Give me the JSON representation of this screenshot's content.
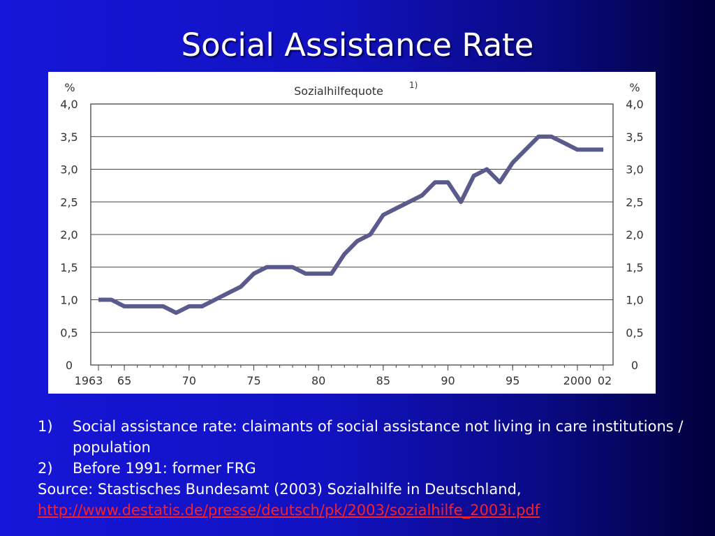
{
  "slide": {
    "title": "Social Assistance Rate"
  },
  "chart_data": {
    "type": "line",
    "title": "Sozialhilfequote",
    "title_superscript": "1)",
    "ylabel_left": "%",
    "ylabel_right": "%",
    "ylim": [
      0,
      4
    ],
    "xlim": [
      1963,
      2002
    ],
    "grid": true,
    "line_color": "#5a5a8c",
    "y_ticks": [
      {
        "value": 0,
        "label": "0"
      },
      {
        "value": 0.5,
        "label": "0,5"
      },
      {
        "value": 1.0,
        "label": "1,0"
      },
      {
        "value": 1.5,
        "label": "1,5"
      },
      {
        "value": 2.0,
        "label": "2,0"
      },
      {
        "value": 2.5,
        "label": "2,5"
      },
      {
        "value": 3.0,
        "label": "3,0"
      },
      {
        "value": 3.5,
        "label": "3,5"
      },
      {
        "value": 4.0,
        "label": "4,0"
      }
    ],
    "x_ticks": [
      {
        "value": 1963,
        "label": "1963"
      },
      {
        "value": 1965,
        "label": "65"
      },
      {
        "value": 1970,
        "label": "70"
      },
      {
        "value": 1975,
        "label": "75"
      },
      {
        "value": 1980,
        "label": "80"
      },
      {
        "value": 1985,
        "label": "85"
      },
      {
        "value": 1990,
        "label": "90"
      },
      {
        "value": 1995,
        "label": "95"
      },
      {
        "value": 2000,
        "label": "2000"
      },
      {
        "value": 2002,
        "label": "02"
      }
    ],
    "series": [
      {
        "x": [
          1963,
          1964,
          1965,
          1966,
          1967,
          1968,
          1969,
          1970,
          1971,
          1972,
          1973,
          1974,
          1975,
          1976,
          1977,
          1978,
          1979,
          1980,
          1981,
          1982,
          1983,
          1984,
          1985,
          1986,
          1987,
          1988,
          1989,
          1990,
          1991,
          1992,
          1993,
          1994,
          1995,
          1996,
          1997,
          1998,
          1999,
          2000,
          2001,
          2002
        ],
        "values": [
          1.0,
          1.0,
          0.9,
          0.9,
          0.9,
          0.9,
          0.8,
          0.9,
          0.9,
          1.0,
          1.1,
          1.2,
          1.4,
          1.5,
          1.5,
          1.5,
          1.4,
          1.4,
          1.4,
          1.7,
          1.9,
          2.0,
          2.3,
          2.4,
          2.5,
          2.6,
          2.8,
          2.8,
          2.5,
          2.9,
          3.0,
          2.8,
          3.1,
          3.3,
          3.5,
          3.5,
          3.4,
          3.3,
          3.3,
          3.3
        ]
      }
    ]
  },
  "notes": [
    {
      "num": "1)",
      "text": "Social assistance rate: claimants of social assistance not living in care institutions / population"
    },
    {
      "num": "2)",
      "text": "Before 1991: former FRG"
    }
  ],
  "source": {
    "text": "Source: Stastisches Bundesamt (2003) Sozialhilfe in Deutschland,",
    "url": "http://www.destatis.de/presse/deutsch/pk/2003/sozialhilfe_2003i.pdf"
  }
}
